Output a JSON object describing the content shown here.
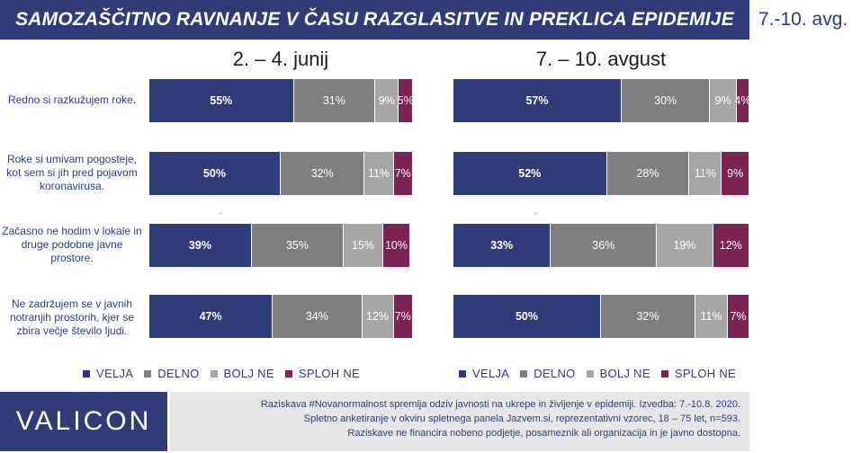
{
  "header": {
    "title": "SAMOZAŠČITNO RAVNANJE V ČASU RAZGLASITVE IN PREKLICA EPIDEMIJE",
    "date_tag": "7.-10. avg."
  },
  "colors": {
    "title_bg": "#2e3d78",
    "veljа": "#2e3d78"
  },
  "chart_data": [
    {
      "type": "bar",
      "orientation": "horizontal-stacked-100",
      "title": "2. – 4. junij",
      "categories": [
        "Redno si razkužujem roke.",
        "Roke si umivam pogosteje, kot sem si jih pred pojavom koronavirusa.",
        "Začasno ne hodim v lokale in druge podobne javne prostore.",
        "Ne zadržujem se v javnih notranjih prostorih, kjer se zbira večje število ljudi."
      ],
      "series": [
        {
          "name": "VELJA",
          "color": "#2e3d78",
          "values": [
            55,
            50,
            39,
            47
          ]
        },
        {
          "name": "DELNO",
          "color": "#7f7f7f",
          "values": [
            31,
            32,
            35,
            34
          ]
        },
        {
          "name": "BOLJ NE",
          "color": "#a6a6a6",
          "values": [
            9,
            11,
            15,
            12
          ]
        },
        {
          "name": "SPLOH NE",
          "color": "#7b2353",
          "values": [
            5,
            7,
            10,
            7
          ]
        }
      ],
      "xlim": [
        0,
        100
      ]
    },
    {
      "type": "bar",
      "orientation": "horizontal-stacked-100",
      "title": "7. – 10. avgust",
      "categories": [
        "Redno si razkužujem roke.",
        "Roke si umivam pogosteje, kot sem si jih pred pojavom koronavirusa.",
        "Začasno ne hodim v lokale in druge podobne javne prostore.",
        "Ne zadržujem se v javnih notranjih prostorih, kjer se zbira večje število ljudi."
      ],
      "series": [
        {
          "name": "VELJA",
          "color": "#2e3d78",
          "values": [
            57,
            52,
            33,
            50
          ]
        },
        {
          "name": "DELNO",
          "color": "#7f7f7f",
          "values": [
            30,
            28,
            36,
            32
          ]
        },
        {
          "name": "BOLJ NE",
          "color": "#a6a6a6",
          "values": [
            9,
            11,
            19,
            11
          ]
        },
        {
          "name": "SPLOH NE",
          "color": "#7b2353",
          "values": [
            4,
            9,
            12,
            7
          ]
        }
      ],
      "xlim": [
        0,
        100
      ]
    }
  ],
  "footer": {
    "logo": "VALICON",
    "lines": [
      "Raziskava #Novanormalnost spremlja odziv javnosti na ukrepe in življenje v epidemiji. Izvedba: 7.-10.8. 2020.",
      "Spletno anketiranje v okviru spletnega panela Jazvem.si, reprezentativni vzorec, 18 – 75 let, n=593.",
      "Raziskave ne financira nobeno podjetje, posameznik ali organizacija in je javno dostopna."
    ]
  }
}
